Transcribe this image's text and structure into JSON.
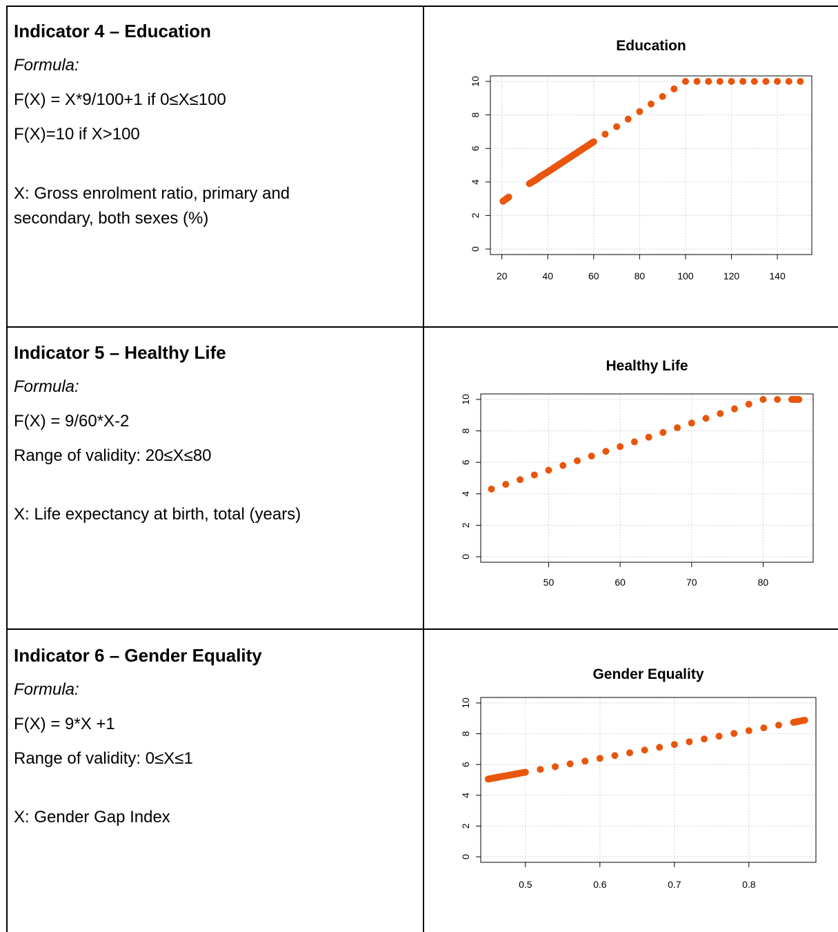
{
  "rows": [
    {
      "heading": "Indicator 4 – Education",
      "formula_label": "Formula:",
      "lines": [
        "F(X) = X*9/100+1 if 0≤X≤100",
        "F(X)=10 if X>100"
      ],
      "x_desc": "X: Gross enrolment ratio, primary and secondary, both sexes (%)"
    },
    {
      "heading": "Indicator 5 – Healthy Life",
      "formula_label": "Formula:",
      "lines": [
        "F(X) = 9/60*X-2",
        "Range of validity: 20≤X≤80"
      ],
      "x_desc": "X: Life expectancy at birth, total (years)"
    },
    {
      "heading": "Indicator 6 – Gender Equality",
      "formula_label": "Formula:",
      "lines": [
        "F(X) = 9*X +1",
        "Range of validity: 0≤X≤1"
      ],
      "x_desc": "X: Gender Gap Index"
    }
  ],
  "chart_data": [
    {
      "type": "scatter",
      "title": "Education",
      "xlim": [
        15,
        155
      ],
      "ylim": [
        0,
        10
      ],
      "xticks": [
        20,
        40,
        60,
        80,
        100,
        120,
        140
      ],
      "yticks": [
        0,
        2,
        4,
        6,
        8,
        10
      ],
      "grid": true,
      "color": "#e8560c",
      "points": [
        [
          20.5,
          2.85
        ],
        [
          23,
          3.1
        ],
        [
          32,
          3.9
        ],
        [
          35,
          4.15
        ],
        [
          37,
          4.35
        ],
        [
          40,
          4.6
        ],
        [
          43,
          4.87
        ],
        [
          46,
          5.14
        ],
        [
          50,
          5.5
        ],
        [
          53,
          5.77
        ],
        [
          57,
          6.13
        ],
        [
          60,
          6.4
        ],
        [
          65,
          6.85
        ],
        [
          70,
          7.3
        ],
        [
          75,
          7.75
        ],
        [
          80,
          8.2
        ],
        [
          85,
          8.65
        ],
        [
          90,
          9.1
        ],
        [
          95,
          9.55
        ],
        [
          100,
          10
        ],
        [
          105,
          10
        ],
        [
          110,
          10
        ],
        [
          115,
          10
        ],
        [
          120,
          10
        ],
        [
          125,
          10
        ],
        [
          130,
          10
        ],
        [
          135,
          10
        ],
        [
          140,
          10
        ],
        [
          145,
          10
        ],
        [
          150,
          10
        ]
      ]
    },
    {
      "type": "scatter",
      "title": "Healthy Life",
      "xlim": [
        40.5,
        87
      ],
      "ylim": [
        0,
        10
      ],
      "xticks": [
        50,
        60,
        70,
        80
      ],
      "yticks": [
        0,
        2,
        4,
        6,
        8,
        10
      ],
      "grid": true,
      "color": "#e8560c",
      "points": [
        [
          42,
          4.3
        ],
        [
          44,
          4.6
        ],
        [
          46,
          4.9
        ],
        [
          48,
          5.2
        ],
        [
          50,
          5.5
        ],
        [
          52,
          5.8
        ],
        [
          54,
          6.1
        ],
        [
          56,
          6.4
        ],
        [
          58,
          6.7
        ],
        [
          60,
          7.0
        ],
        [
          62,
          7.3
        ],
        [
          64,
          7.6
        ],
        [
          66,
          7.9
        ],
        [
          68,
          8.2
        ],
        [
          70,
          8.5
        ],
        [
          72,
          8.8
        ],
        [
          74,
          9.1
        ],
        [
          76,
          9.4
        ],
        [
          78,
          9.7
        ],
        [
          80,
          10
        ],
        [
          82,
          10
        ],
        [
          84,
          10
        ],
        [
          85,
          10
        ]
      ]
    },
    {
      "type": "scatter",
      "title": "Gender Equality",
      "xlim": [
        0.44,
        0.89
      ],
      "ylim": [
        0,
        10
      ],
      "xticks": [
        0.5,
        0.6,
        0.7,
        0.8
      ],
      "yticks": [
        0,
        2,
        4,
        6,
        8,
        10
      ],
      "grid": true,
      "color": "#e8560c",
      "points": [
        [
          0.45,
          5.05
        ],
        [
          0.46,
          5.14
        ],
        [
          0.465,
          5.19
        ],
        [
          0.48,
          5.32
        ],
        [
          0.49,
          5.41
        ],
        [
          0.5,
          5.5
        ],
        [
          0.52,
          5.68
        ],
        [
          0.54,
          5.86
        ],
        [
          0.56,
          6.04
        ],
        [
          0.58,
          6.22
        ],
        [
          0.6,
          6.4
        ],
        [
          0.62,
          6.58
        ],
        [
          0.64,
          6.76
        ],
        [
          0.66,
          6.94
        ],
        [
          0.68,
          7.12
        ],
        [
          0.7,
          7.3
        ],
        [
          0.72,
          7.48
        ],
        [
          0.74,
          7.66
        ],
        [
          0.76,
          7.84
        ],
        [
          0.78,
          8.02
        ],
        [
          0.8,
          8.2
        ],
        [
          0.82,
          8.38
        ],
        [
          0.84,
          8.56
        ],
        [
          0.86,
          8.74
        ],
        [
          0.875,
          8.88
        ]
      ]
    }
  ]
}
